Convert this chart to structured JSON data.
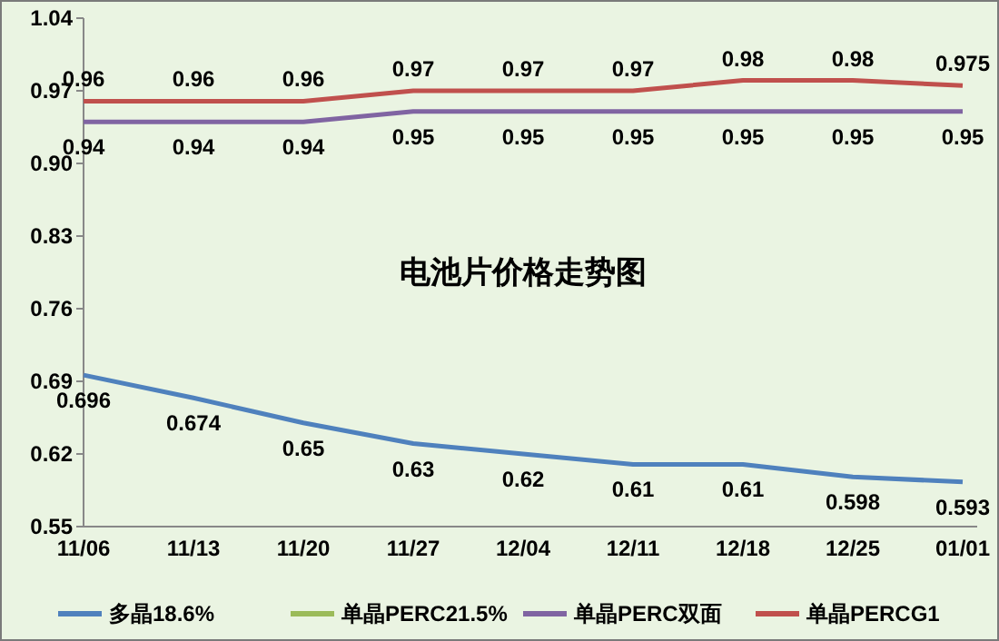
{
  "chart_data": {
    "type": "line",
    "title": "电池片价格走势图",
    "categories": [
      "11/06",
      "11/13",
      "11/20",
      "11/27",
      "12/04",
      "12/11",
      "12/18",
      "12/25",
      "01/01"
    ],
    "series": [
      {
        "name": "多晶18.6%",
        "color": "#4f81bd",
        "values": [
          0.696,
          0.674,
          0.65,
          0.63,
          0.62,
          0.61,
          0.61,
          0.598,
          0.593
        ]
      },
      {
        "name": "单晶PERC21.5%",
        "color": "#9bbb59",
        "values": [
          null,
          null,
          null,
          null,
          null,
          null,
          null,
          null,
          null
        ]
      },
      {
        "name": "单晶PERC双面",
        "color": "#8064a2",
        "values": [
          0.94,
          0.94,
          0.94,
          0.95,
          0.95,
          0.95,
          0.95,
          0.95,
          0.95
        ]
      },
      {
        "name": "单晶PERCG1",
        "color": "#c0504d",
        "values": [
          0.96,
          0.96,
          0.96,
          0.97,
          0.97,
          0.97,
          0.98,
          0.98,
          0.975
        ]
      }
    ],
    "ylim": [
      0.55,
      1.04
    ],
    "yticks": [
      0.55,
      {
        "value": 0.62,
        "label": "0.62"
      },
      {
        "value": 0.69,
        "label": "0.69"
      },
      {
        "value": 0.76,
        "label": "0.76"
      },
      {
        "value": 0.83,
        "label": "0.83"
      },
      {
        "value": 0.9,
        "label": "0.90"
      },
      {
        "value": 0.97,
        "label": "0.97"
      },
      {
        "value": 1.04,
        "label": "1.04"
      }
    ],
    "data_labels": true,
    "legend": "bottom",
    "marker": "none",
    "grid": false
  }
}
